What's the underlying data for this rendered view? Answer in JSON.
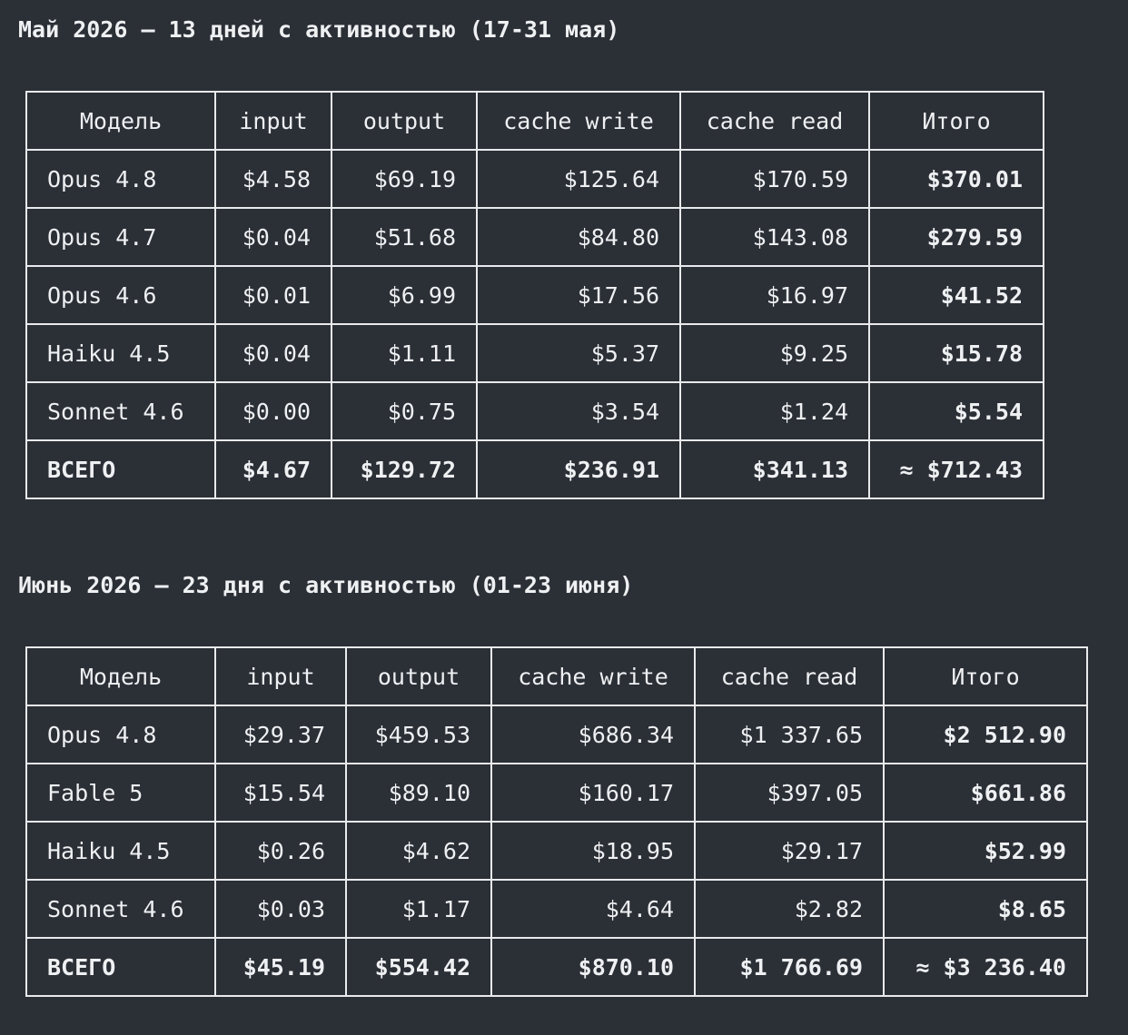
{
  "sections": [
    {
      "title": "Май 2026 — 13 дней с активностью (17-31 мая)",
      "table": {
        "header": [
          "Модель",
          "input",
          "output",
          "cache write",
          "cache read",
          "Итого"
        ],
        "rows": [
          [
            "Opus 4.8",
            "$4.58",
            "$69.19",
            "$125.64",
            "$170.59",
            "$370.01"
          ],
          [
            "Opus 4.7",
            "$0.04",
            "$51.68",
            "$84.80",
            "$143.08",
            "$279.59"
          ],
          [
            "Opus 4.6",
            "$0.01",
            "$6.99",
            "$17.56",
            "$16.97",
            "$41.52"
          ],
          [
            "Haiku 4.5",
            "$0.04",
            "$1.11",
            "$5.37",
            "$9.25",
            "$15.78"
          ],
          [
            "Sonnet 4.6",
            "$0.00",
            "$0.75",
            "$3.54",
            "$1.24",
            "$5.54"
          ],
          [
            "ВСЕГО",
            "$4.67",
            "$129.72",
            "$236.91",
            "$341.13",
            "≈ $712.43"
          ]
        ]
      }
    },
    {
      "title": "Июнь 2026 — 23 дня с активностью (01-23 июня)",
      "table": {
        "header": [
          "Модель",
          "input",
          "output",
          "cache write",
          "cache read",
          "Итого"
        ],
        "rows": [
          [
            "Opus 4.8",
            "$29.37",
            "$459.53",
            "$686.34",
            "$1 337.65",
            "$2 512.90"
          ],
          [
            "Fable 5",
            "$15.54",
            "$89.10",
            "$160.17",
            "$397.05",
            "$661.86"
          ],
          [
            "Haiku 4.5",
            "$0.26",
            "$4.62",
            "$18.95",
            "$29.17",
            "$52.99"
          ],
          [
            "Sonnet 4.6",
            "$0.03",
            "$1.17",
            "$4.64",
            "$2.82",
            "$8.65"
          ],
          [
            "ВСЕГО",
            "$45.19",
            "$554.42",
            "$870.10",
            "$1 766.69",
            "≈ $3 236.40"
          ]
        ]
      }
    }
  ]
}
